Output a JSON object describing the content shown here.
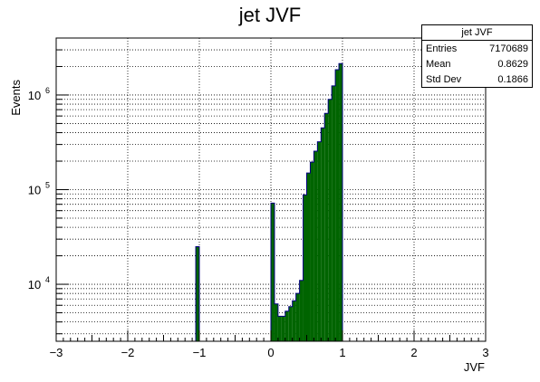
{
  "title": "jet JVF",
  "stats": {
    "title": "jet JVF",
    "rows": [
      {
        "label": "Entries",
        "value": "7170689"
      },
      {
        "label": "Mean",
        "value": "0.8629"
      },
      {
        "label": "Std Dev",
        "value": "0.1866"
      }
    ]
  },
  "chart_data": {
    "type": "bar",
    "title": "jet JVF",
    "xlabel": "JVF",
    "ylabel": "Events",
    "xlim": [
      -3,
      3
    ],
    "ylim": [
      2500,
      4000000
    ],
    "log_y": true,
    "grid": true,
    "fill_color": "#006400",
    "line_color": "#000080",
    "bin_width": 0.05,
    "x_ticks": [
      "−3",
      "−2",
      "−1",
      "0",
      "1",
      "2",
      "3"
    ],
    "x_tick_values": [
      -3,
      -2,
      -1,
      0,
      1,
      2,
      3
    ],
    "y_ticks": [
      {
        "value": 10000,
        "base": "10",
        "exp": "4"
      },
      {
        "value": 100000,
        "base": "10",
        "exp": "5"
      },
      {
        "value": 1000000,
        "base": "10",
        "exp": "6"
      }
    ],
    "bins": [
      {
        "x0": -1.05,
        "x1": -1.0,
        "y": 25000
      },
      {
        "x0": 0.0,
        "x1": 0.05,
        "y": 72000
      },
      {
        "x0": 0.05,
        "x1": 0.1,
        "y": 6200
      },
      {
        "x0": 0.1,
        "x1": 0.15,
        "y": 4600
      },
      {
        "x0": 0.15,
        "x1": 0.2,
        "y": 4600
      },
      {
        "x0": 0.2,
        "x1": 0.25,
        "y": 5200
      },
      {
        "x0": 0.25,
        "x1": 0.3,
        "y": 5800
      },
      {
        "x0": 0.3,
        "x1": 0.35,
        "y": 6700
      },
      {
        "x0": 0.35,
        "x1": 0.4,
        "y": 8000
      },
      {
        "x0": 0.4,
        "x1": 0.45,
        "y": 11000
      },
      {
        "x0": 0.45,
        "x1": 0.5,
        "y": 88000
      },
      {
        "x0": 0.5,
        "x1": 0.55,
        "y": 150000
      },
      {
        "x0": 0.55,
        "x1": 0.6,
        "y": 195000
      },
      {
        "x0": 0.6,
        "x1": 0.65,
        "y": 255000
      },
      {
        "x0": 0.65,
        "x1": 0.7,
        "y": 320000
      },
      {
        "x0": 0.7,
        "x1": 0.75,
        "y": 450000
      },
      {
        "x0": 0.75,
        "x1": 0.8,
        "y": 640000
      },
      {
        "x0": 0.8,
        "x1": 0.85,
        "y": 900000
      },
      {
        "x0": 0.85,
        "x1": 0.9,
        "y": 1250000
      },
      {
        "x0": 0.9,
        "x1": 0.95,
        "y": 1850000
      },
      {
        "x0": 0.95,
        "x1": 1.0,
        "y": 2150000
      }
    ]
  }
}
